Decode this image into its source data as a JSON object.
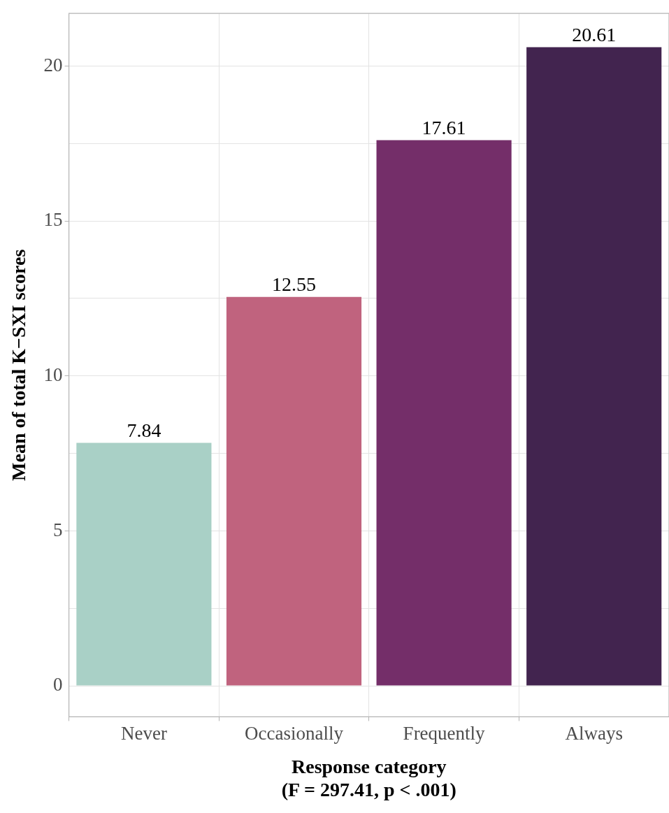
{
  "chart_data": {
    "type": "bar",
    "xlabel": "Response category\n(F = 297.41, p < .001)",
    "ylabel": "Mean of total K−SXI scores",
    "categories": [
      "Never",
      "Occasionally",
      "Frequently",
      "Always"
    ],
    "values": [
      7.84,
      12.55,
      17.61,
      20.61
    ],
    "colors": [
      "#a9d0c6",
      "#c0637e",
      "#742e69",
      "#42244f"
    ],
    "ylim": [
      -1,
      21.7
    ],
    "yticks": [
      0,
      {
        "value": 2.5,
        "label": null
      },
      5,
      {
        "value": 7.5,
        "label": null
      },
      10,
      {
        "value": 12.5,
        "label": null
      },
      15,
      {
        "value": 17.5,
        "label": null
      },
      20
    ],
    "grid": true,
    "data_labels": true
  }
}
